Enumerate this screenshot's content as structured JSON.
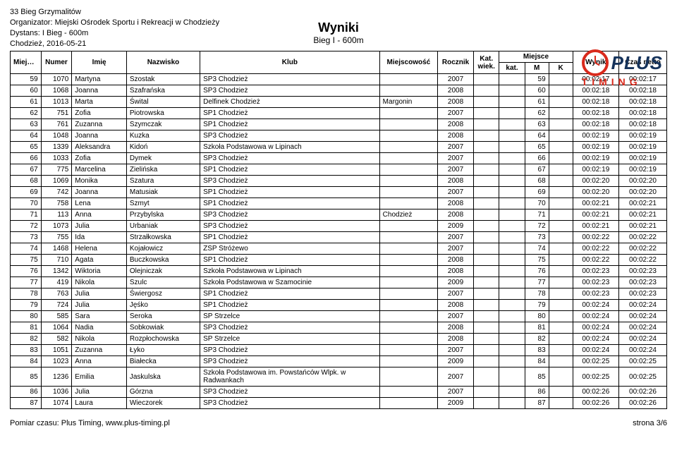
{
  "header": {
    "line1": "33 Bieg Grzymalitów",
    "line2": "Organizator: Miejski Ośrodek Sportu i Rekreacji w Chodzieży",
    "line3": "Dystans: I Bieg - 600m",
    "line4": "Chodzież, 2016-05-21"
  },
  "title": {
    "main": "Wyniki",
    "sub": "Bieg I - 600m"
  },
  "brand": {
    "word1": "PLUS",
    "word2": "TIMING"
  },
  "columns": {
    "miejsce": "Miejsce",
    "numer": "Numer",
    "imie": "Imię",
    "nazwisko": "Nazwisko",
    "klub": "Klub",
    "miejscowosc": "Miejscowość",
    "rocznik": "Rocznik",
    "kat_wiek": "Kat. wiek.",
    "miejsce2": "Miejsce",
    "kat": "kat.",
    "m": "M",
    "k": "K",
    "wynik": "Wynik",
    "czas": "Czas netto"
  },
  "rows": [
    {
      "p": "59",
      "n": "1070",
      "i": "Martyna",
      "s": "Szostak",
      "k": "SP3 Chodzież",
      "mc": "",
      "r": "2007",
      "kw": "",
      "kt": "",
      "m": "59",
      "kk": "",
      "w": "00:02:17",
      "c": "00:02:17"
    },
    {
      "p": "60",
      "n": "1068",
      "i": "Joanna",
      "s": "Szafrańska",
      "k": "SP3 Chodzież",
      "mc": "",
      "r": "2008",
      "kw": "",
      "kt": "",
      "m": "60",
      "kk": "",
      "w": "00:02:18",
      "c": "00:02:18"
    },
    {
      "p": "61",
      "n": "1013",
      "i": "Marta",
      "s": "Śwital",
      "k": "Delfinek Chodzież",
      "mc": "Margonin",
      "r": "2008",
      "kw": "",
      "kt": "",
      "m": "61",
      "kk": "",
      "w": "00:02:18",
      "c": "00:02:18"
    },
    {
      "p": "62",
      "n": "751",
      "i": "Zofia",
      "s": "Piotrowska",
      "k": "SP1 Chodzież",
      "mc": "",
      "r": "2007",
      "kw": "",
      "kt": "",
      "m": "62",
      "kk": "",
      "w": "00:02:18",
      "c": "00:02:18"
    },
    {
      "p": "63",
      "n": "761",
      "i": "Zuzanna",
      "s": "Szymczak",
      "k": "SP1 Chodzież",
      "mc": "",
      "r": "2008",
      "kw": "",
      "kt": "",
      "m": "63",
      "kk": "",
      "w": "00:02:18",
      "c": "00:02:18"
    },
    {
      "p": "64",
      "n": "1048",
      "i": "Joanna",
      "s": "Kuzka",
      "k": "SP3 Chodzież",
      "mc": "",
      "r": "2008",
      "kw": "",
      "kt": "",
      "m": "64",
      "kk": "",
      "w": "00:02:19",
      "c": "00:02:19"
    },
    {
      "p": "65",
      "n": "1339",
      "i": "Aleksandra",
      "s": "Kidoń",
      "k": "Szkoła Podstawowa w Lipinach",
      "mc": "",
      "r": "2007",
      "kw": "",
      "kt": "",
      "m": "65",
      "kk": "",
      "w": "00:02:19",
      "c": "00:02:19"
    },
    {
      "p": "66",
      "n": "1033",
      "i": "Zofia",
      "s": "Dymek",
      "k": "SP3 Chodzież",
      "mc": "",
      "r": "2007",
      "kw": "",
      "kt": "",
      "m": "66",
      "kk": "",
      "w": "00:02:19",
      "c": "00:02:19"
    },
    {
      "p": "67",
      "n": "775",
      "i": "Marcelina",
      "s": "Zielińska",
      "k": "SP1 Chodzież",
      "mc": "",
      "r": "2007",
      "kw": "",
      "kt": "",
      "m": "67",
      "kk": "",
      "w": "00:02:19",
      "c": "00:02:19"
    },
    {
      "p": "68",
      "n": "1069",
      "i": "Monika",
      "s": "Szatura",
      "k": "SP3 Chodzież",
      "mc": "",
      "r": "2008",
      "kw": "",
      "kt": "",
      "m": "68",
      "kk": "",
      "w": "00:02:20",
      "c": "00:02:20"
    },
    {
      "p": "69",
      "n": "742",
      "i": "Joanna",
      "s": "Matusiak",
      "k": "SP1 Chodzież",
      "mc": "",
      "r": "2007",
      "kw": "",
      "kt": "",
      "m": "69",
      "kk": "",
      "w": "00:02:20",
      "c": "00:02:20"
    },
    {
      "p": "70",
      "n": "758",
      "i": "Lena",
      "s": "Szmyt",
      "k": "SP1 Chodzież",
      "mc": "",
      "r": "2008",
      "kw": "",
      "kt": "",
      "m": "70",
      "kk": "",
      "w": "00:02:21",
      "c": "00:02:21"
    },
    {
      "p": "71",
      "n": "113",
      "i": "Anna",
      "s": "Przybylska",
      "k": "SP3 Chodzież",
      "mc": "Chodzież",
      "r": "2008",
      "kw": "",
      "kt": "",
      "m": "71",
      "kk": "",
      "w": "00:02:21",
      "c": "00:02:21"
    },
    {
      "p": "72",
      "n": "1073",
      "i": "Julia",
      "s": "Urbaniak",
      "k": "SP3 Chodzież",
      "mc": "",
      "r": "2009",
      "kw": "",
      "kt": "",
      "m": "72",
      "kk": "",
      "w": "00:02:21",
      "c": "00:02:21"
    },
    {
      "p": "73",
      "n": "755",
      "i": "Ida",
      "s": "Strzałkowska",
      "k": "SP1 Chodzież",
      "mc": "",
      "r": "2007",
      "kw": "",
      "kt": "",
      "m": "73",
      "kk": "",
      "w": "00:02:22",
      "c": "00:02:22"
    },
    {
      "p": "74",
      "n": "1468",
      "i": "Helena",
      "s": "Kojałowicz",
      "k": "ZSP Stróżewo",
      "mc": "",
      "r": "2007",
      "kw": "",
      "kt": "",
      "m": "74",
      "kk": "",
      "w": "00:02:22",
      "c": "00:02:22"
    },
    {
      "p": "75",
      "n": "710",
      "i": "Agata",
      "s": "Buczkowska",
      "k": "SP1 Chodzież",
      "mc": "",
      "r": "2008",
      "kw": "",
      "kt": "",
      "m": "75",
      "kk": "",
      "w": "00:02:22",
      "c": "00:02:22"
    },
    {
      "p": "76",
      "n": "1342",
      "i": "Wiktoria",
      "s": "Olejniczak",
      "k": "Szkoła Podstawowa w Lipinach",
      "mc": "",
      "r": "2008",
      "kw": "",
      "kt": "",
      "m": "76",
      "kk": "",
      "w": "00:02:23",
      "c": "00:02:23"
    },
    {
      "p": "77",
      "n": "419",
      "i": "Nikola",
      "s": "Szulc",
      "k": "Szkoła Podstawowa w Szamocinie",
      "mc": "",
      "r": "2009",
      "kw": "",
      "kt": "",
      "m": "77",
      "kk": "",
      "w": "00:02:23",
      "c": "00:02:23"
    },
    {
      "p": "78",
      "n": "763",
      "i": "Julia",
      "s": "Świergosz",
      "k": "SP1 Chodzież",
      "mc": "",
      "r": "2007",
      "kw": "",
      "kt": "",
      "m": "78",
      "kk": "",
      "w": "00:02:23",
      "c": "00:02:23"
    },
    {
      "p": "79",
      "n": "724",
      "i": "Julia",
      "s": "Jęśko",
      "k": "SP1 Chodzież",
      "mc": "",
      "r": "2008",
      "kw": "",
      "kt": "",
      "m": "79",
      "kk": "",
      "w": "00:02:24",
      "c": "00:02:24"
    },
    {
      "p": "80",
      "n": "585",
      "i": "Sara",
      "s": "Seroka",
      "k": "SP Strzelce",
      "mc": "",
      "r": "2007",
      "kw": "",
      "kt": "",
      "m": "80",
      "kk": "",
      "w": "00:02:24",
      "c": "00:02:24"
    },
    {
      "p": "81",
      "n": "1064",
      "i": "Nadia",
      "s": "Sobkowiak",
      "k": "SP3 Chodzież",
      "mc": "",
      "r": "2008",
      "kw": "",
      "kt": "",
      "m": "81",
      "kk": "",
      "w": "00:02:24",
      "c": "00:02:24"
    },
    {
      "p": "82",
      "n": "582",
      "i": "Nikola",
      "s": "Rozpłochowska",
      "k": "SP Strzelce",
      "mc": "",
      "r": "2008",
      "kw": "",
      "kt": "",
      "m": "82",
      "kk": "",
      "w": "00:02:24",
      "c": "00:02:24"
    },
    {
      "p": "83",
      "n": "1051",
      "i": "Zuzanna",
      "s": "Łyko",
      "k": "SP3 Chodzież",
      "mc": "",
      "r": "2007",
      "kw": "",
      "kt": "",
      "m": "83",
      "kk": "",
      "w": "00:02:24",
      "c": "00:02:24"
    },
    {
      "p": "84",
      "n": "1023",
      "i": "Anna",
      "s": "Białecka",
      "k": "SP3 Chodzież",
      "mc": "",
      "r": "2009",
      "kw": "",
      "kt": "",
      "m": "84",
      "kk": "",
      "w": "00:02:25",
      "c": "00:02:25"
    },
    {
      "p": "85",
      "n": "1236",
      "i": "Emilia",
      "s": "Jaskulska",
      "k": "Szkoła Podstawowa im. Powstańców Wlpk. w Radwankach",
      "mc": "",
      "r": "2007",
      "kw": "",
      "kt": "",
      "m": "85",
      "kk": "",
      "w": "00:02:25",
      "c": "00:02:25"
    },
    {
      "p": "86",
      "n": "1036",
      "i": "Julia",
      "s": "Górzna",
      "k": "SP3 Chodzież",
      "mc": "",
      "r": "2007",
      "kw": "",
      "kt": "",
      "m": "86",
      "kk": "",
      "w": "00:02:26",
      "c": "00:02:26"
    },
    {
      "p": "87",
      "n": "1074",
      "i": "Laura",
      "s": "Wieczorek",
      "k": "SP3 Chodzież",
      "mc": "",
      "r": "2009",
      "kw": "",
      "kt": "",
      "m": "87",
      "kk": "",
      "w": "00:02:26",
      "c": "00:02:26"
    }
  ],
  "footer": {
    "left": "Pomiar czasu: Plus Timing, www.plus-timing.pl",
    "right": "strona 3/6"
  }
}
